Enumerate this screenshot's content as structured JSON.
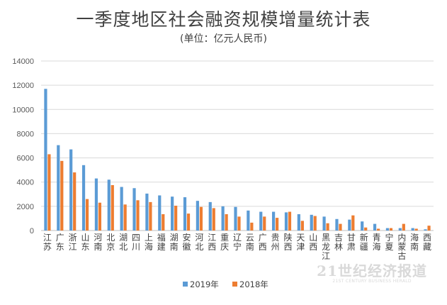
{
  "chart_data": {
    "type": "bar",
    "title": "一季度地区社会融资规模增量统计表",
    "subtitle": "(单位：亿元人民币)",
    "ylim": [
      0,
      14000
    ],
    "yticks": [
      0,
      2000,
      4000,
      6000,
      8000,
      10000,
      12000,
      14000
    ],
    "grid": true,
    "legend_position": "bottom",
    "categories": [
      "江苏",
      "广东",
      "浙江",
      "山东",
      "河南",
      "北京",
      "湖北",
      "四川",
      "上海",
      "福建",
      "湖南",
      "安徽",
      "河北",
      "江西",
      "重庆",
      "辽宁",
      "云南",
      "广西",
      "贵州",
      "陕西",
      "天津",
      "山西",
      "黑龙江",
      "吉林",
      "甘肃",
      "新疆",
      "青海",
      "宁夏",
      "内蒙古",
      "海南",
      "西藏"
    ],
    "series": [
      {
        "name": "2019年",
        "color": "#5b9bd5",
        "values": [
          11700,
          7050,
          6700,
          5400,
          4300,
          4200,
          3600,
          3500,
          3050,
          2900,
          2800,
          2750,
          2450,
          2350,
          2000,
          1950,
          1650,
          1550,
          1550,
          1500,
          1350,
          1300,
          1150,
          950,
          900,
          750,
          550,
          200,
          200,
          200,
          100
        ]
      },
      {
        "name": "2018年",
        "color": "#ed7d31",
        "values": [
          6300,
          5750,
          4800,
          2600,
          2300,
          3750,
          2150,
          2500,
          2350,
          1350,
          2050,
          1400,
          1950,
          1850,
          1350,
          1150,
          650,
          1150,
          1050,
          1550,
          800,
          1200,
          600,
          550,
          1250,
          250,
          150,
          200,
          550,
          150,
          400
        ]
      }
    ]
  },
  "watermark": {
    "main": "21世纪经济报道",
    "sub": "21ST CENTURY BUSINESS HERALD"
  }
}
